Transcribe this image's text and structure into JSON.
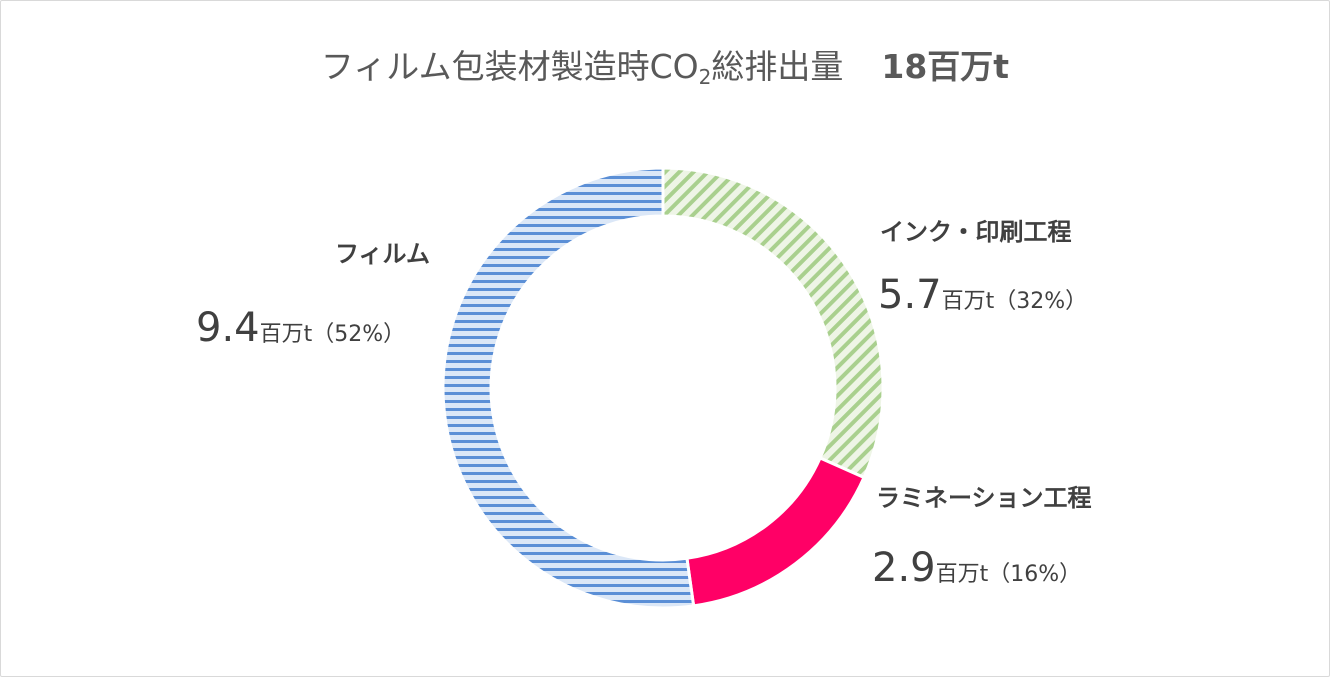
{
  "title": {
    "main_prefix": "フィルム包装材製造時CO",
    "subscript": "2",
    "main_suffix": "総排出量",
    "total": "18百万t"
  },
  "chart_data": {
    "type": "pie",
    "subtype": "donut",
    "unit": "百万t",
    "title": "フィルム包装材製造時CO2総排出量 18百万t",
    "categories": [
      "インク・印刷工程",
      "ラミネーション工程",
      "フィルム"
    ],
    "values": [
      5.7,
      2.9,
      9.4
    ],
    "percentages": [
      32,
      16,
      52
    ],
    "slices": [
      {
        "name": "インク・印刷工程",
        "value": 5.7,
        "percent": 32,
        "value_text": "5.7",
        "unit_text": "百万t",
        "pct_text": "（32%）",
        "color": "#a9d08e",
        "pattern": "diagonal-stripes"
      },
      {
        "name": "ラミネーション工程",
        "value": 2.9,
        "percent": 16,
        "value_text": "2.9",
        "unit_text": "百万t",
        "pct_text": "（16%）",
        "color": "#ff0066",
        "pattern": "solid"
      },
      {
        "name": "フィルム",
        "value": 9.4,
        "percent": 52,
        "value_text": "9.4",
        "unit_text": "百万t",
        "pct_text": "（52%）",
        "color": "#5b8fd6",
        "pattern": "horizontal-stripes"
      }
    ]
  }
}
